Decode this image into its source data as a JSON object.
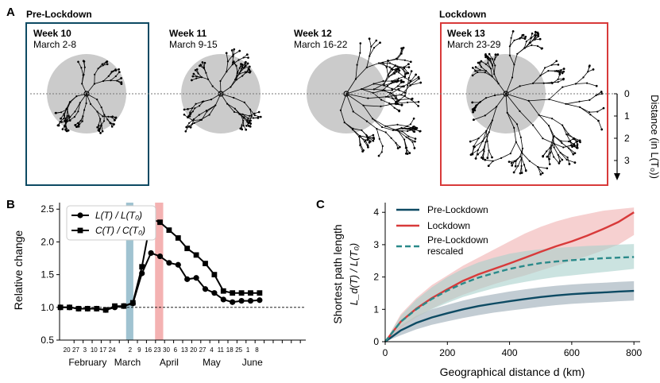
{
  "colors": {
    "pre": "#0d4a63",
    "lock": "#d83a3a",
    "bubble": "#cbcbcb",
    "box_pre": "#0d4a63",
    "box_lock": "#d83a3a",
    "band_march": "#8fb8c9",
    "band_april": "#f2a5a5"
  },
  "panelA": {
    "label": "A",
    "group_pre": "Pre-Lockdown",
    "group_lock": "Lockdown",
    "weeks": [
      {
        "title": "Week 10",
        "dates": "March 2-8"
      },
      {
        "title": "Week 11",
        "dates": "March 9-15"
      },
      {
        "title": "Week 12",
        "dates": "March 16-22"
      },
      {
        "title": "Week 13",
        "dates": "March 23-29"
      }
    ],
    "distance_axis": {
      "label": "Distance (in L(T₀))",
      "ticks": [
        "0",
        "1",
        "2",
        "3"
      ]
    }
  },
  "chart_data": [
    {
      "panel": "B",
      "type": "line",
      "ylabel": "Relative change",
      "ylim": [
        0.5,
        2.6
      ],
      "yticks": [
        0.5,
        1.0,
        1.5,
        2.0,
        2.5
      ],
      "ytick_labels": [
        "0.5",
        "1.0",
        "1.5",
        "2.0",
        "2.5"
      ],
      "xlim": [
        8.4,
        35.6
      ],
      "x_tick_positions": [
        10,
        11,
        12,
        13,
        14,
        15,
        16,
        17,
        18,
        19,
        20,
        21,
        22,
        23,
        24,
        25,
        26,
        27,
        28,
        29,
        30,
        31,
        32,
        33,
        34,
        35
      ],
      "x_tick_labels": [
        "20",
        "27",
        "3",
        "10",
        "17",
        "24",
        "2",
        "9",
        "16",
        "23",
        "30",
        "6",
        "13",
        "20",
        "27",
        "4",
        "11",
        "18",
        "25",
        "1",
        "8"
      ],
      "x_tick_label_positions": [
        9.2,
        10.2,
        11.2,
        12.2,
        13.2,
        14.2,
        16.2,
        17.2,
        18.2,
        19.2,
        20.2,
        21.2,
        22.2,
        23.2,
        24.2,
        25.2,
        26.2,
        27.2,
        28.2,
        29.2,
        30.2
      ],
      "month_labels": [
        {
          "label": "February",
          "x": 11.5
        },
        {
          "label": "March",
          "x": 15.9
        },
        {
          "label": "April",
          "x": 20.5
        },
        {
          "label": "May",
          "x": 25.2
        },
        {
          "label": "June",
          "x": 29.7
        }
      ],
      "reference_line": 1.0,
      "shaded_weeks": [
        {
          "x0": 15.75,
          "x1": 16.55,
          "color_key": "band_march"
        },
        {
          "x0": 18.95,
          "x1": 19.85,
          "color_key": "band_april"
        }
      ],
      "x": [
        8.5,
        9.5,
        10.5,
        11.5,
        12.5,
        13.5,
        14.5,
        15.5,
        16.5,
        17.5,
        18.5,
        19.5,
        20.5,
        21.5,
        22.5,
        23.5,
        24.5,
        25.5,
        26.5,
        27.5,
        28.5,
        29.5,
        30.5
      ],
      "series": [
        {
          "name": "L(T) / L(T₀)",
          "marker": "circle",
          "values": [
            1.0,
            1.0,
            0.98,
            0.98,
            0.98,
            0.96,
            1.0,
            1.02,
            1.06,
            1.52,
            1.83,
            1.78,
            1.68,
            1.65,
            1.43,
            1.45,
            1.28,
            1.22,
            1.12,
            1.08,
            1.1,
            1.1,
            1.11
          ]
        },
        {
          "name": "C(T) / C(T₀)",
          "marker": "square",
          "values": [
            1.0,
            1.0,
            0.98,
            0.98,
            0.98,
            0.96,
            1.02,
            1.02,
            1.07,
            1.62,
            2.35,
            2.3,
            2.18,
            2.06,
            1.9,
            1.8,
            1.67,
            1.5,
            1.25,
            1.22,
            1.22,
            1.22,
            1.22
          ]
        }
      ]
    },
    {
      "panel": "C",
      "type": "line",
      "xlabel": "Geographical distance d (km)",
      "ylabel_line1": "Shortest path length",
      "ylabel_line2": "L_d(T) / L(T₀)",
      "xlim": [
        0,
        820
      ],
      "ylim": [
        0,
        4.3
      ],
      "xticks": [
        0,
        200,
        400,
        600,
        800
      ],
      "xtick_labels": [
        "0",
        "200",
        "400",
        "600",
        "800"
      ],
      "yticks": [
        0,
        1,
        2,
        3,
        4
      ],
      "ytick_labels": [
        "0",
        "1",
        "2",
        "3",
        "4"
      ],
      "x": [
        0,
        50,
        100,
        150,
        200,
        250,
        300,
        350,
        400,
        450,
        500,
        550,
        600,
        650,
        700,
        750,
        800
      ],
      "series": [
        {
          "name": "Pre-Lockdown",
          "style": "solid",
          "color_key": "pre",
          "values": [
            0.0,
            0.35,
            0.58,
            0.75,
            0.88,
            1.0,
            1.1,
            1.18,
            1.25,
            1.32,
            1.38,
            1.43,
            1.47,
            1.5,
            1.52,
            1.55,
            1.57
          ],
          "band_low": [
            0.0,
            0.2,
            0.38,
            0.52,
            0.63,
            0.73,
            0.82,
            0.9,
            0.96,
            1.02,
            1.08,
            1.13,
            1.17,
            1.2,
            1.22,
            1.25,
            1.27
          ],
          "band_high": [
            0.0,
            0.5,
            0.8,
            1.0,
            1.14,
            1.27,
            1.38,
            1.47,
            1.55,
            1.62,
            1.68,
            1.73,
            1.77,
            1.8,
            1.82,
            1.85,
            1.87
          ]
        },
        {
          "name": "Lockdown",
          "style": "solid",
          "color_key": "lock",
          "values": [
            0.0,
            0.62,
            1.02,
            1.35,
            1.62,
            1.88,
            2.08,
            2.25,
            2.42,
            2.6,
            2.78,
            2.95,
            3.1,
            3.28,
            3.48,
            3.7,
            4.0
          ],
          "band_low": [
            0.0,
            0.42,
            0.75,
            1.02,
            1.25,
            1.45,
            1.62,
            1.78,
            1.92,
            2.05,
            2.2,
            2.35,
            2.5,
            2.65,
            2.82,
            3.0,
            3.3
          ],
          "band_high": [
            0.0,
            0.85,
            1.35,
            1.75,
            2.05,
            2.35,
            2.6,
            2.85,
            3.1,
            3.35,
            3.55,
            3.72,
            3.85,
            3.95,
            4.05,
            4.1,
            4.15
          ]
        },
        {
          "name": "Pre-Lockdown rescaled",
          "style": "dashed",
          "color_key": "pre_rescaled",
          "values": [
            0.0,
            0.62,
            1.0,
            1.32,
            1.58,
            1.8,
            1.98,
            2.12,
            2.25,
            2.35,
            2.43,
            2.48,
            2.52,
            2.55,
            2.58,
            2.6,
            2.62
          ],
          "band_low": [
            0.0,
            0.45,
            0.75,
            1.0,
            1.2,
            1.38,
            1.52,
            1.65,
            1.76,
            1.85,
            1.93,
            2.0,
            2.05,
            2.1,
            2.15,
            2.2,
            2.25
          ],
          "band_high": [
            0.0,
            0.8,
            1.3,
            1.68,
            2.0,
            2.25,
            2.45,
            2.6,
            2.72,
            2.8,
            2.86,
            2.9,
            2.93,
            2.96,
            2.98,
            3.0,
            3.02
          ]
        }
      ],
      "legend": [
        "Pre-Lockdown",
        "Lockdown",
        "Pre-Lockdown rescaled"
      ]
    }
  ],
  "panelB_label": "B",
  "panelC_label": "C",
  "pre_rescaled_color": "#2a8a8a",
  "band_pre_color": "#9aaab5",
  "band_lock_color": "#f0b0b0",
  "band_rescaled_color": "#a8d0cc"
}
